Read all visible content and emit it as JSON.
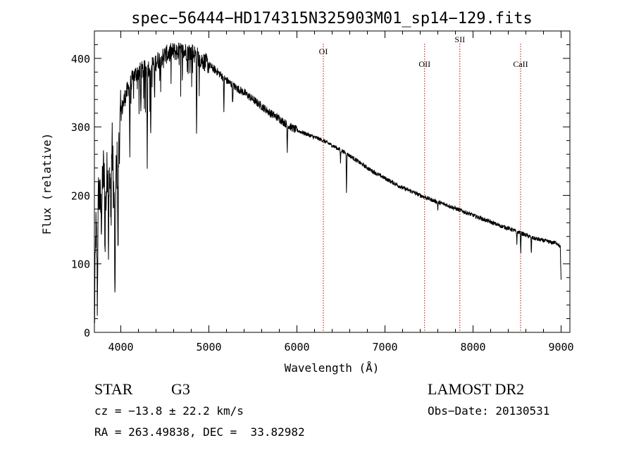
{
  "chart_data": {
    "type": "line",
    "title": "spec−56444−HD174315N325903M01_sp14−129.fits",
    "xlabel": "Wavelength (Å)",
    "ylabel": "Flux (relative)",
    "xlim": [
      3700,
      9100
    ],
    "ylim": [
      0,
      440
    ],
    "xticks": [
      4000,
      5000,
      6000,
      7000,
      8000,
      9000
    ],
    "yticks": [
      0,
      100,
      200,
      300,
      400
    ],
    "x_tick_labels": [
      "4000",
      "5000",
      "6000",
      "7000",
      "8000",
      "9000"
    ],
    "y_tick_labels": [
      "0",
      "100",
      "200",
      "300",
      "400"
    ],
    "grid": false,
    "line_color": "#000000",
    "marker_color": "#cc0000",
    "continuum": [
      [
        3700,
        5
      ],
      [
        3715,
        150
      ],
      [
        3730,
        120
      ],
      [
        3750,
        210
      ],
      [
        3780,
        170
      ],
      [
        3800,
        240
      ],
      [
        3830,
        190
      ],
      [
        3850,
        250
      ],
      [
        3880,
        200
      ],
      [
        3900,
        280
      ],
      [
        3930,
        160
      ],
      [
        3950,
        240
      ],
      [
        3970,
        250
      ],
      [
        4000,
        320
      ],
      [
        4050,
        345
      ],
      [
        4100,
        360
      ],
      [
        4150,
        375
      ],
      [
        4200,
        380
      ],
      [
        4300,
        385
      ],
      [
        4400,
        395
      ],
      [
        4500,
        405
      ],
      [
        4600,
        410
      ],
      [
        4700,
        410
      ],
      [
        4800,
        410
      ],
      [
        4900,
        400
      ],
      [
        5000,
        390
      ],
      [
        5100,
        380
      ],
      [
        5200,
        368
      ],
      [
        5300,
        358
      ],
      [
        5400,
        350
      ],
      [
        5500,
        340
      ],
      [
        5600,
        330
      ],
      [
        5700,
        320
      ],
      [
        5800,
        312
      ],
      [
        5900,
        302
      ],
      [
        6000,
        295
      ],
      [
        6100,
        290
      ],
      [
        6200,
        285
      ],
      [
        6300,
        280
      ],
      [
        6400,
        273
      ],
      [
        6500,
        266
      ],
      [
        6600,
        258
      ],
      [
        6700,
        249
      ],
      [
        6800,
        240
      ],
      [
        6900,
        232
      ],
      [
        7000,
        225
      ],
      [
        7100,
        218
      ],
      [
        7200,
        211
      ],
      [
        7300,
        206
      ],
      [
        7400,
        200
      ],
      [
        7500,
        195
      ],
      [
        7600,
        190
      ],
      [
        7700,
        186
      ],
      [
        7800,
        181
      ],
      [
        7900,
        176
      ],
      [
        8000,
        171
      ],
      [
        8100,
        166
      ],
      [
        8200,
        161
      ],
      [
        8300,
        156
      ],
      [
        8400,
        152
      ],
      [
        8500,
        147
      ],
      [
        8600,
        142
      ],
      [
        8700,
        137
      ],
      [
        8800,
        134
      ],
      [
        8900,
        131
      ],
      [
        8950,
        131
      ],
      [
        8990,
        125
      ],
      [
        9000,
        75
      ]
    ],
    "absorption_lines": [
      {
        "wavelength": 3734,
        "depth": 110
      },
      {
        "wavelength": 3820,
        "depth": 90
      },
      {
        "wavelength": 3860,
        "depth": 110
      },
      {
        "wavelength": 3890,
        "depth": 80
      },
      {
        "wavelength": 3934,
        "depth": 180
      },
      {
        "wavelength": 3968,
        "depth": 160
      },
      {
        "wavelength": 4102,
        "depth": 110
      },
      {
        "wavelength": 4227,
        "depth": 70
      },
      {
        "wavelength": 4300,
        "depth": 140
      },
      {
        "wavelength": 4340,
        "depth": 110
      },
      {
        "wavelength": 4383,
        "depth": 60
      },
      {
        "wavelength": 4861,
        "depth": 130
      },
      {
        "wavelength": 5170,
        "depth": 50
      },
      {
        "wavelength": 5270,
        "depth": 30
      },
      {
        "wavelength": 5890,
        "depth": 40
      },
      {
        "wavelength": 6495,
        "depth": 18
      },
      {
        "wavelength": 6563,
        "depth": 60
      },
      {
        "wavelength": 7600,
        "depth": 10
      },
      {
        "wavelength": 8498,
        "depth": 18
      },
      {
        "wavelength": 8542,
        "depth": 30
      },
      {
        "wavelength": 8662,
        "depth": 26
      }
    ],
    "line_markers": [
      {
        "label": "OI",
        "wavelength": 6300
      },
      {
        "label": "OII",
        "wavelength": 7450
      },
      {
        "label": "SII",
        "wavelength": 7850
      },
      {
        "label": "CaII",
        "wavelength": 8540
      }
    ]
  },
  "info": {
    "object_type": "STAR",
    "spectral_class": "G3",
    "survey": "LAMOST DR2",
    "redshift": "cz = −13.8 ± 22.2 km/s",
    "obs_date": "Obs−Date: 20130531",
    "coordinates": "RA = 263.49838, DEC =  33.82982"
  }
}
